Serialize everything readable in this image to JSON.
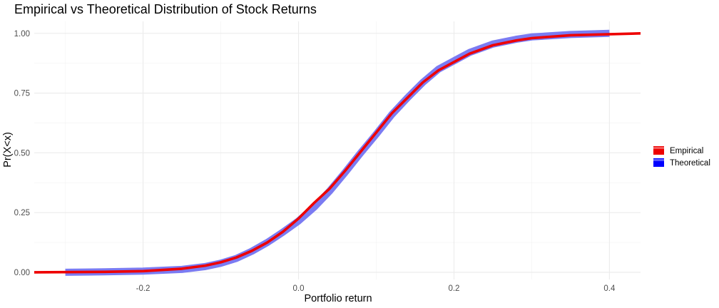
{
  "chart_data": {
    "type": "line",
    "title": "Empirical vs Theoretical Distribution of Stock Returns",
    "xlabel": "Portfolio return",
    "ylabel": "Pr(X<x)",
    "xlim": [
      -0.34,
      0.44
    ],
    "ylim": [
      -0.03,
      1.05
    ],
    "x_ticks": [
      -0.2,
      0.0,
      0.2,
      0.4
    ],
    "x_tick_labels": [
      "-0.2",
      "0.0",
      "0.2",
      "0.4"
    ],
    "y_ticks": [
      0.0,
      0.25,
      0.5,
      0.75,
      1.0
    ],
    "y_tick_labels": [
      "0.00",
      "0.25",
      "0.50",
      "0.75",
      "1.00"
    ],
    "grid": true,
    "legend_position": "right",
    "series": [
      {
        "name": "Theoretical",
        "color": "#7b7bf2",
        "x": [
          -0.3,
          -0.25,
          -0.2,
          -0.15,
          -0.12,
          -0.1,
          -0.08,
          -0.06,
          -0.04,
          -0.02,
          0.0,
          0.02,
          0.04,
          0.06,
          0.08,
          0.1,
          0.12,
          0.14,
          0.16,
          0.18,
          0.2,
          0.22,
          0.25,
          0.28,
          0.3,
          0.35,
          0.4
        ],
        "values": [
          0.0,
          0.002,
          0.005,
          0.012,
          0.024,
          0.038,
          0.058,
          0.088,
          0.125,
          0.168,
          0.215,
          0.272,
          0.34,
          0.418,
          0.5,
          0.578,
          0.66,
          0.73,
          0.795,
          0.85,
          0.885,
          0.92,
          0.955,
          0.975,
          0.985,
          0.995,
          1.0
        ]
      },
      {
        "name": "Empirical",
        "color": "#ee0000",
        "x": [
          -0.34,
          -0.25,
          -0.2,
          -0.15,
          -0.12,
          -0.1,
          -0.08,
          -0.06,
          -0.04,
          -0.02,
          0.0,
          0.02,
          0.04,
          0.06,
          0.08,
          0.1,
          0.12,
          0.14,
          0.16,
          0.18,
          0.2,
          0.22,
          0.25,
          0.28,
          0.3,
          0.35,
          0.44
        ],
        "values": [
          0.0,
          0.002,
          0.005,
          0.015,
          0.028,
          0.042,
          0.062,
          0.09,
          0.125,
          0.17,
          0.225,
          0.29,
          0.35,
          0.425,
          0.505,
          0.585,
          0.665,
          0.73,
          0.795,
          0.845,
          0.88,
          0.915,
          0.95,
          0.97,
          0.98,
          0.992,
          1.0
        ]
      }
    ],
    "legend": [
      {
        "label": "Empirical",
        "color": "#ee0000"
      },
      {
        "label": "Theoretical",
        "color": "#0000ff"
      }
    ]
  }
}
